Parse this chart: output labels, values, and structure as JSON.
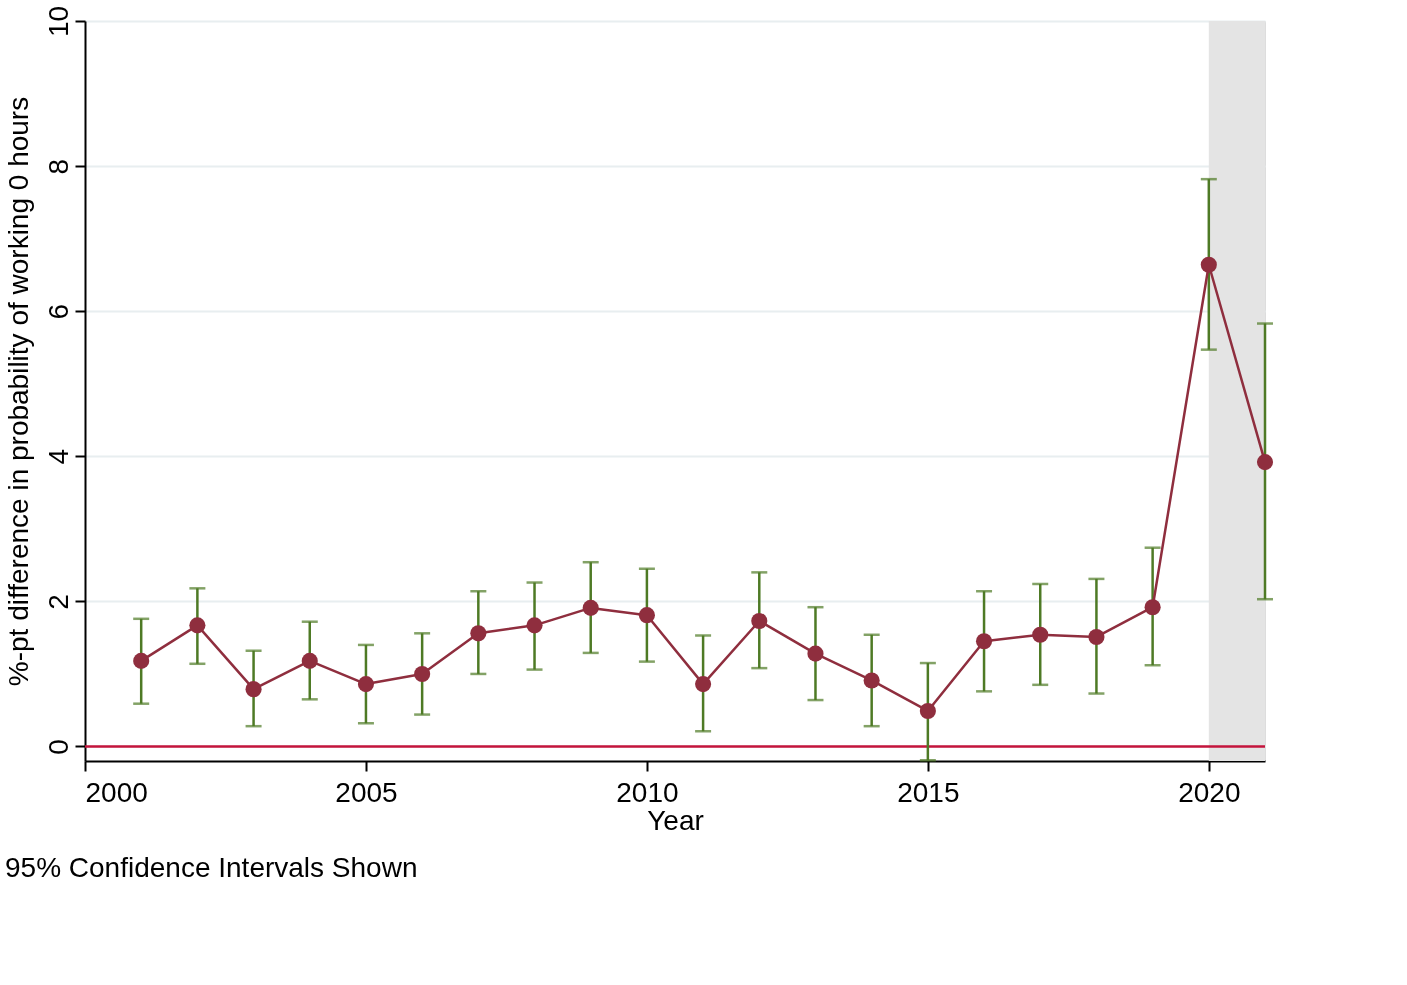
{
  "chart_data": {
    "type": "line",
    "xlabel": "Year",
    "ylabel": "%-pt difference in probability of working 0 hours",
    "annotations": [
      "95% Confidence Intervals Shown"
    ],
    "x": [
      2001,
      2002,
      2003,
      2004,
      2005,
      2006,
      2007,
      2008,
      2009,
      2010,
      2011,
      2012,
      2013,
      2014,
      2015,
      2016,
      2017,
      2018,
      2019,
      2020,
      2021
    ],
    "series": [
      {
        "color": "#8f2e3e",
        "values": [
          1.18,
          1.67,
          0.79,
          1.18,
          0.86,
          1.0,
          1.56,
          1.67,
          1.91,
          1.81,
          0.86,
          1.73,
          1.28,
          0.91,
          0.49,
          1.45,
          1.54,
          1.51,
          1.92,
          6.64,
          3.92
        ],
        "errors": [
          [
            0.59,
            1.76
          ],
          [
            1.14,
            2.18
          ],
          [
            0.28,
            1.32
          ],
          [
            0.65,
            1.72
          ],
          [
            0.32,
            1.4
          ],
          [
            0.44,
            1.56
          ],
          [
            1.0,
            2.14
          ],
          [
            1.06,
            2.26
          ],
          [
            1.29,
            2.54
          ],
          [
            1.17,
            2.45
          ],
          [
            0.21,
            1.53
          ],
          [
            1.08,
            2.4
          ],
          [
            0.64,
            1.92
          ],
          [
            0.28,
            1.54
          ],
          [
            -0.19,
            1.15
          ],
          [
            0.76,
            2.14
          ],
          [
            0.85,
            2.24
          ],
          [
            0.73,
            2.31
          ],
          [
            1.12,
            2.74
          ],
          [
            5.47,
            7.82
          ],
          [
            2.03,
            5.83
          ]
        ]
      }
    ],
    "xlim": [
      2000,
      2021
    ],
    "xticks": [
      2000,
      2005,
      2010,
      2015,
      2020
    ],
    "ylim": [
      -0.2,
      10
    ],
    "yticks": [
      0,
      2,
      4,
      6,
      8,
      10
    ],
    "ref_lines": [
      {
        "axis": "y",
        "value": 0,
        "color": "#c4143c"
      }
    ],
    "bands": [
      {
        "axis": "x",
        "from": 2020,
        "to": 2021,
        "color": "#e4e4e4"
      }
    ],
    "grid": "y",
    "marker": "circle",
    "line_style": "solid"
  }
}
